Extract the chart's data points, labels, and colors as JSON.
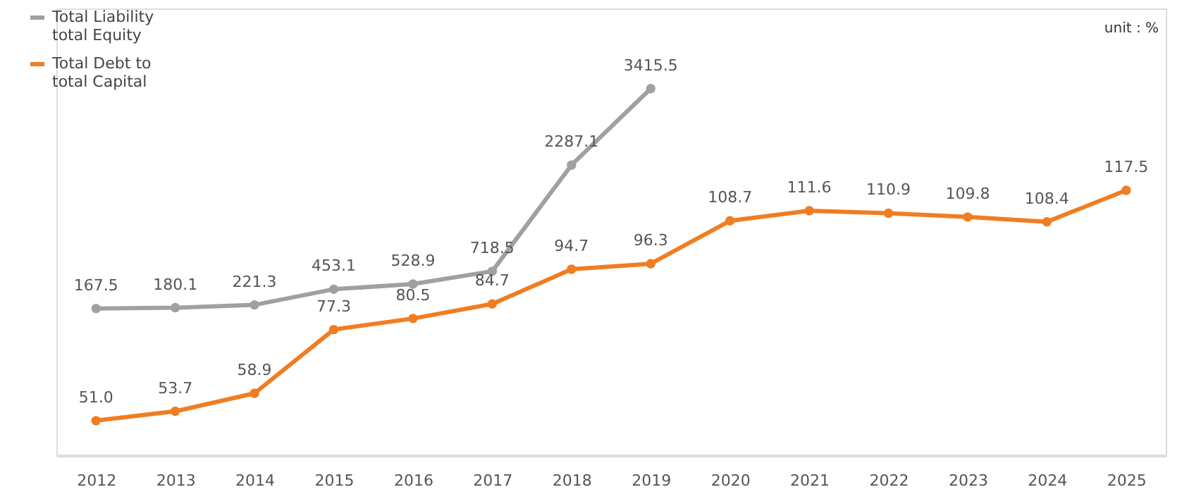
{
  "chart_data": {
    "type": "line",
    "categories": [
      "2012",
      "2013",
      "2014",
      "2015",
      "2016",
      "2017",
      "2018",
      "2019",
      "2020",
      "2021",
      "2022",
      "2023",
      "2024",
      "2025"
    ],
    "series": [
      {
        "name": "Total Liability\ntotal Equity",
        "color": "#a0a0a0",
        "axis": "y2",
        "values": [
          167.5,
          180.1,
          221.3,
          453.1,
          528.9,
          718.5,
          2287.1,
          3415.5,
          null,
          null,
          null,
          null,
          null,
          null
        ],
        "value_labels": [
          "167.5",
          "180.1",
          "221.3",
          "453.1",
          "528.9",
          "718.5",
          "2287.1",
          "3415.5",
          null,
          null,
          null,
          null,
          null,
          null
        ]
      },
      {
        "name": "Total Debt to\ntotal Capital",
        "color": "#f07d22",
        "values": [
          51.0,
          53.7,
          58.9,
          77.3,
          80.5,
          84.7,
          94.7,
          96.3,
          108.7,
          111.6,
          110.9,
          109.8,
          108.4,
          117.5
        ],
        "value_labels": [
          "51.0",
          "53.7",
          "58.9",
          "77.3",
          "80.5",
          "84.7",
          "94.7",
          "96.3",
          "108.7",
          "111.6",
          "110.9",
          "109.8",
          "108.4",
          "117.5"
        ]
      }
    ],
    "ylim": [
      41,
      170
    ],
    "y2lim": [
      -2000,
      4600
    ],
    "tick_labels": "x",
    "marker": "circle",
    "line_style": "solid",
    "grid": false,
    "legend": "top left",
    "annotations": [
      "unit : %"
    ]
  }
}
